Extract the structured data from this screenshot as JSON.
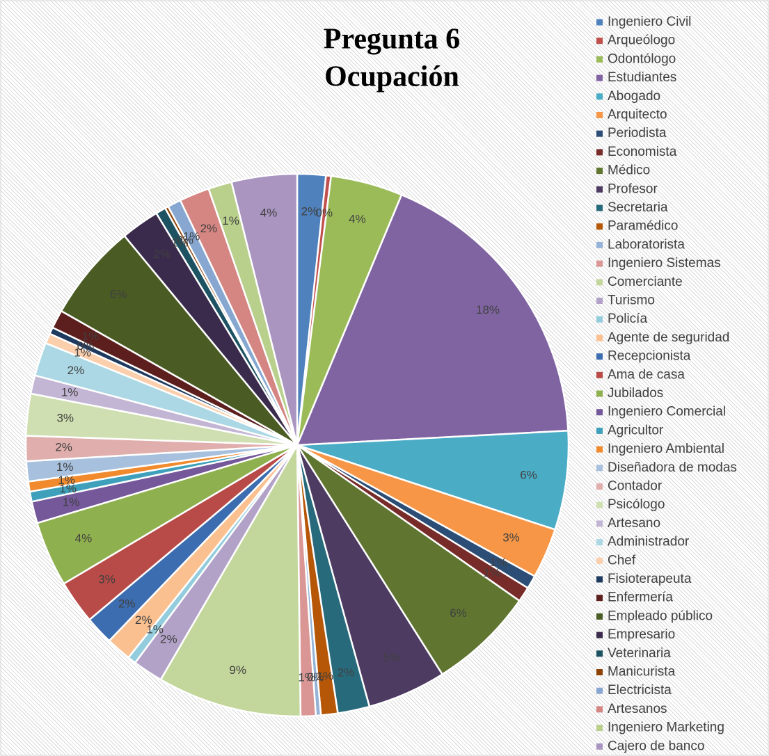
{
  "chart_data": {
    "type": "pie",
    "title": [
      "Pregunta 6",
      "Ocupación"
    ],
    "categories": [
      "Ingeniero Civil",
      "Arqueólogo",
      "Odontólogo",
      "Estudiantes",
      "Abogado",
      "Arquitecto",
      "Periodista",
      "Economista",
      "Médico",
      "Profesor",
      "Secretaria",
      "Paramédico",
      "Laboratorista",
      "Ingeniero Sistemas",
      "Comerciante",
      "Turismo",
      "Policía",
      "Agente de seguridad",
      "Recepcionista",
      "Ama de casa",
      "Jubilados",
      "Ingeniero Comercial",
      "Agricultor",
      "Ingeniero Ambiental",
      "Diseñadora de modas",
      "Contador",
      "Psicólogo",
      "Artesano",
      "Administrador",
      "Chef",
      "Fisioterapeuta",
      "Enfermería",
      "Empleado público",
      "Empresario",
      "Veterinaria",
      "Manicurista",
      "Electricista",
      "Artesanos",
      "Ingeniero Marketing",
      "Cajero de banco"
    ],
    "values": [
      1.7,
      0.3,
      4.3,
      17.9,
      5.9,
      3.0,
      0.8,
      0.9,
      6.3,
      4.7,
      1.9,
      1.0,
      0.3,
      0.9,
      8.6,
      1.8,
      0.5,
      1.5,
      1.7,
      2.6,
      3.9,
      1.3,
      0.6,
      0.6,
      1.2,
      1.5,
      2.5,
      1.1,
      2.0,
      0.6,
      0.4,
      1.1,
      5.8,
      2.3,
      0.6,
      0.2,
      0.8,
      1.8,
      1.4,
      3.9
    ],
    "value_labels": [
      "2%",
      "0%",
      "4%",
      "18%",
      "6%",
      "3%",
      "1%",
      "1%",
      "6%",
      "5%",
      "2%",
      "1%",
      "0%",
      "1%",
      "9%",
      "2%",
      "1%",
      "2%",
      "2%",
      "3%",
      "4%",
      "1%",
      "1%",
      "1%",
      "1%",
      "2%",
      "3%",
      "1%",
      "2%",
      "1%",
      "0%",
      "1%",
      "6%",
      "2%",
      "1%",
      "0%",
      "1%",
      "2%",
      "1%",
      "4%"
    ],
    "colors": [
      "#4f81bd",
      "#c0504d",
      "#9bbb59",
      "#8064a2",
      "#4bacc6",
      "#f79646",
      "#2c4d75",
      "#772c2a",
      "#5f7530",
      "#4d3b62",
      "#276a7c",
      "#b65708",
      "#95b3d7",
      "#d99694",
      "#c3d69b",
      "#b3a2c7",
      "#93cddd",
      "#fac090",
      "#3c6db0",
      "#b84a47",
      "#8fb04e",
      "#74589a",
      "#3ea0bb",
      "#f08a2d",
      "#a7c0de",
      "#e0aeac",
      "#d0dfb1",
      "#c3b6d4",
      "#abd8e4",
      "#fbceac",
      "#1f3a5f",
      "#5c1f1d",
      "#4a5c23",
      "#3a2b4c",
      "#1c5262",
      "#8e4306",
      "#87a7d1",
      "#d58582",
      "#b9cf8c",
      "#a995c0"
    ],
    "legend": "right"
  }
}
